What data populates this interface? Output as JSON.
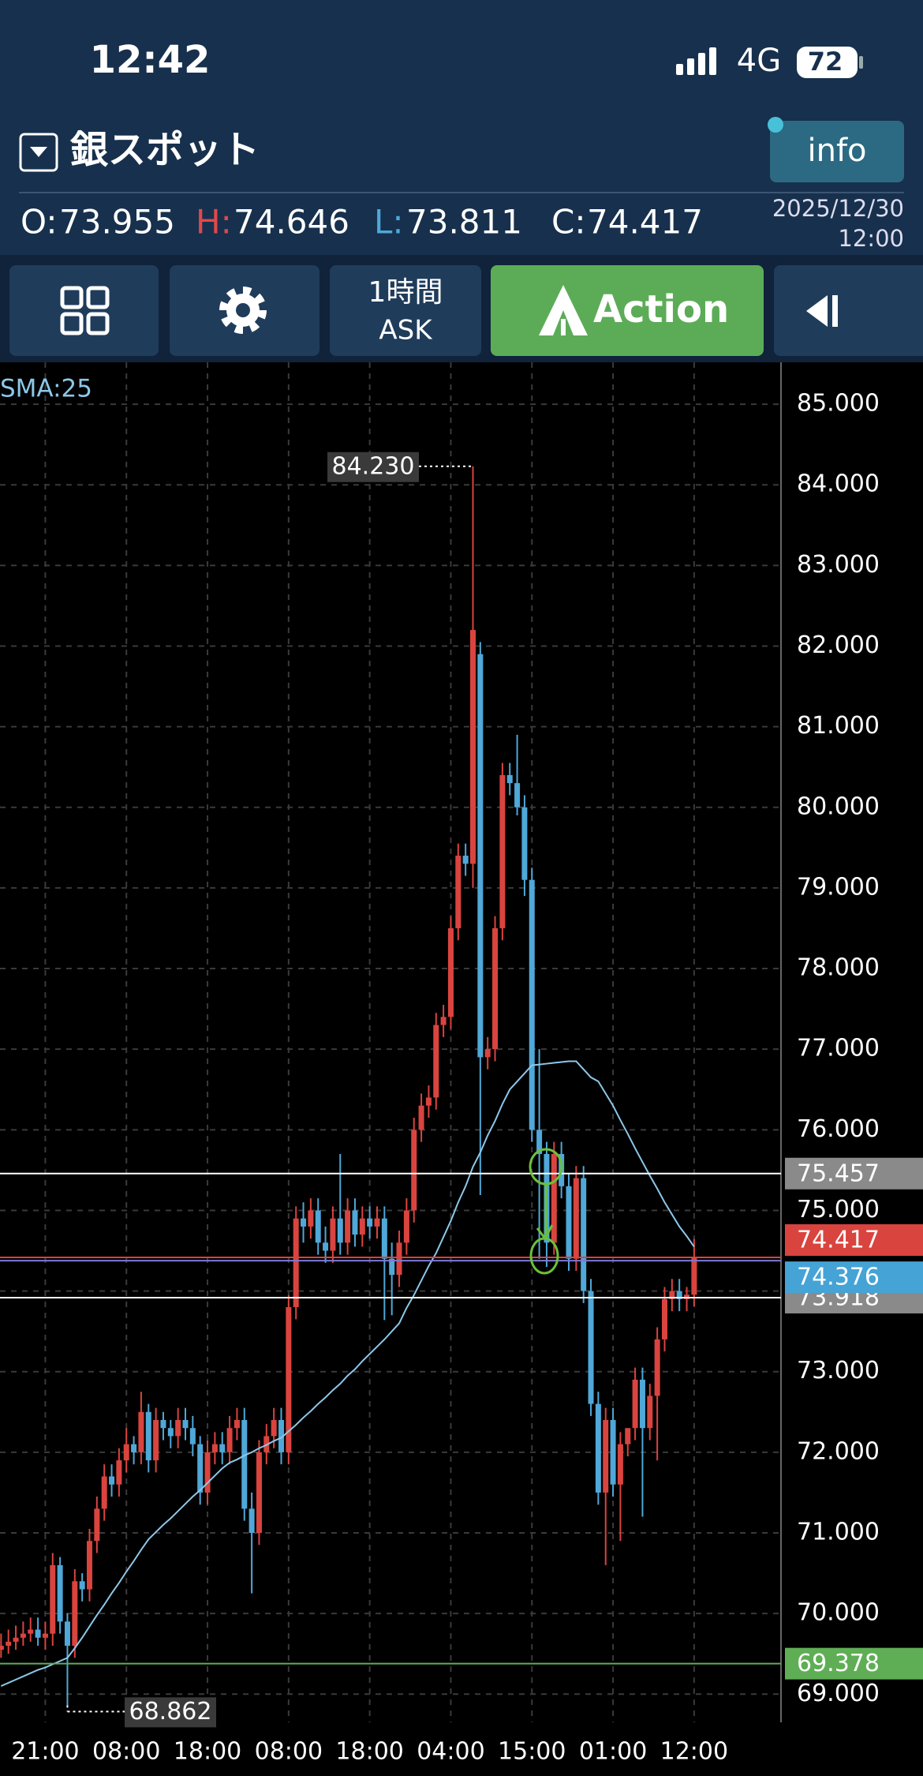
{
  "status_bar": {
    "time": "12:42",
    "network": "4G",
    "battery": "72"
  },
  "header": {
    "title": "銀スポット",
    "info_button": "info",
    "ohlc": [
      {
        "label": "O:",
        "value": 73.955
      },
      {
        "label": "H:",
        "value": 74.646
      },
      {
        "label": "L:",
        "value": 73.811
      },
      {
        "label": "C:",
        "value": 74.417
      }
    ],
    "date": "2025/12/30",
    "time": "12:00"
  },
  "toolbar": {
    "interval": "1時間",
    "price_type": "ASK",
    "action": "Action"
  },
  "chart_data": {
    "type": "candlestick",
    "categories": [
      null,
      null,
      null,
      null,
      null,
      null,
      "21:00",
      null,
      null,
      null,
      null,
      null,
      null,
      null,
      null,
      null,
      null,
      "08:00",
      null,
      null,
      null,
      null,
      null,
      null,
      null,
      null,
      null,
      null,
      "18:00",
      null,
      null,
      null,
      null,
      null,
      null,
      null,
      null,
      null,
      null,
      "08:00",
      null,
      null,
      null,
      null,
      null,
      null,
      null,
      null,
      null,
      null,
      "18:00",
      null,
      null,
      null,
      null,
      null,
      null,
      null,
      null,
      null,
      null,
      "04:00",
      null,
      null,
      null,
      null,
      null,
      null,
      null,
      null,
      null,
      null,
      "15:00",
      null,
      null,
      null,
      null,
      null,
      null,
      null,
      null,
      null,
      null,
      "01:00",
      null,
      null,
      null,
      null,
      null,
      null,
      null,
      null,
      null,
      null,
      "12:00"
    ],
    "open": [
      69.55,
      69.6,
      69.65,
      69.7,
      69.75,
      69.8,
      69.7,
      69.75,
      70.6,
      69.9,
      69.6,
      70.4,
      70.3,
      70.9,
      71.3,
      71.7,
      71.6,
      71.9,
      72.1,
      72.0,
      72.5,
      71.9,
      72.4,
      72.3,
      72.2,
      72.4,
      72.3,
      72.1,
      71.5,
      72.0,
      72.1,
      72.0,
      72.3,
      72.4,
      71.3,
      71.0,
      72.0,
      72.2,
      72.4,
      72.0,
      73.8,
      74.9,
      74.8,
      75.0,
      74.6,
      74.5,
      74.9,
      74.6,
      75.0,
      74.7,
      74.9,
      74.8,
      74.9,
      74.4,
      74.2,
      74.6,
      75.0,
      76.0,
      76.3,
      76.4,
      77.3,
      77.4,
      78.5,
      79.4,
      79.3,
      81.9,
      76.9,
      77.0,
      78.5,
      80.4,
      80.3,
      80.0,
      79.1,
      76.0,
      75.7,
      74.6,
      75.7,
      75.3,
      74.4,
      75.4,
      74.0,
      72.6,
      71.5,
      72.4,
      71.6,
      72.1,
      72.3,
      72.9,
      72.3,
      72.7,
      73.4,
      73.9,
      74.0,
      73.9,
      73.955
    ],
    "high": [
      69.75,
      69.8,
      69.85,
      69.9,
      69.95,
      69.95,
      69.9,
      70.75,
      70.7,
      70.0,
      70.55,
      70.5,
      71.05,
      71.45,
      71.85,
      71.85,
      72.05,
      72.3,
      72.2,
      72.75,
      72.6,
      72.55,
      72.5,
      72.4,
      72.55,
      72.55,
      72.45,
      72.2,
      72.15,
      72.25,
      72.25,
      72.45,
      72.55,
      72.55,
      71.5,
      72.15,
      72.35,
      72.55,
      72.55,
      73.95,
      75.05,
      75.1,
      75.15,
      75.15,
      74.8,
      75.05,
      75.7,
      75.15,
      75.15,
      75.05,
      75.05,
      75.05,
      75.05,
      74.6,
      74.75,
      75.15,
      76.15,
      76.45,
      76.55,
      77.45,
      77.55,
      78.65,
      79.55,
      79.55,
      84.23,
      82.05,
      77.15,
      78.65,
      80.55,
      80.55,
      80.9,
      80.15,
      79.25,
      77.0,
      75.85,
      75.85,
      75.85,
      75.45,
      75.55,
      75.55,
      74.15,
      72.75,
      72.55,
      72.55,
      72.25,
      72.25,
      73.05,
      73.05,
      72.85,
      73.55,
      74.05,
      74.15,
      74.15,
      74.05,
      74.646
    ],
    "low": [
      69.45,
      69.5,
      69.55,
      69.6,
      69.65,
      69.6,
      69.55,
      69.6,
      69.75,
      68.862,
      69.45,
      70.15,
      70.15,
      70.75,
      71.15,
      71.45,
      71.45,
      71.75,
      71.85,
      71.85,
      71.75,
      71.75,
      72.15,
      72.05,
      72.05,
      72.15,
      71.95,
      71.35,
      71.35,
      71.85,
      71.85,
      71.85,
      72.15,
      71.15,
      70.25,
      70.85,
      71.85,
      72.05,
      71.85,
      71.85,
      73.65,
      74.6,
      74.65,
      74.45,
      74.35,
      74.35,
      74.45,
      74.45,
      74.55,
      74.55,
      74.65,
      74.65,
      73.64,
      73.7,
      74.05,
      74.45,
      74.85,
      75.85,
      76.15,
      76.25,
      77.15,
      77.25,
      78.35,
      79.15,
      79.0,
      75.19,
      76.75,
      76.85,
      78.35,
      80.15,
      79.9,
      78.9,
      75.85,
      74.4,
      74.3,
      74.45,
      75.15,
      74.25,
      74.25,
      73.85,
      72.45,
      71.35,
      70.6,
      71.45,
      70.9,
      71.95,
      72.15,
      71.2,
      72.15,
      71.9,
      73.25,
      73.75,
      73.75,
      73.75,
      73.811
    ],
    "close": [
      69.6,
      69.65,
      69.7,
      69.75,
      69.8,
      69.7,
      69.75,
      70.6,
      69.9,
      69.6,
      70.4,
      70.3,
      70.9,
      71.3,
      71.7,
      71.6,
      71.9,
      72.1,
      72.0,
      72.5,
      71.9,
      72.4,
      72.3,
      72.2,
      72.4,
      72.3,
      72.1,
      71.5,
      72.0,
      72.1,
      72.0,
      72.3,
      72.4,
      71.3,
      71.0,
      72.0,
      72.2,
      72.4,
      72.0,
      73.8,
      74.9,
      74.8,
      75.0,
      74.6,
      74.5,
      74.9,
      74.6,
      75.0,
      74.7,
      74.9,
      74.8,
      74.9,
      74.4,
      74.2,
      74.6,
      75.0,
      76.0,
      76.3,
      76.4,
      77.3,
      77.4,
      78.5,
      79.4,
      79.3,
      82.2,
      76.9,
      77.0,
      78.5,
      80.4,
      80.3,
      80.0,
      79.1,
      76.0,
      75.7,
      74.6,
      75.7,
      75.3,
      74.4,
      75.4,
      74.0,
      72.6,
      71.5,
      72.4,
      71.6,
      72.1,
      72.3,
      72.9,
      72.3,
      72.7,
      73.4,
      73.9,
      74.0,
      73.9,
      73.955,
      74.417
    ],
    "up_color": "#d9443f",
    "down_color": "#4fa8d8",
    "sma": {
      "name": "SMA:25",
      "color": "#8cc8ea",
      "values": [
        69.1,
        69.14,
        69.18,
        69.22,
        69.26,
        69.3,
        69.33,
        69.37,
        69.41,
        69.45,
        69.57,
        69.7,
        69.84,
        69.98,
        70.11,
        70.25,
        70.38,
        70.52,
        70.65,
        70.79,
        70.92,
        71.01,
        71.1,
        71.18,
        71.27,
        71.36,
        71.45,
        71.53,
        71.62,
        71.71,
        71.8,
        71.87,
        71.91,
        71.96,
        72.0,
        72.05,
        72.09,
        72.14,
        72.18,
        72.26,
        72.34,
        72.43,
        72.51,
        72.6,
        72.68,
        72.77,
        72.85,
        72.95,
        73.03,
        73.13,
        73.22,
        73.31,
        73.4,
        73.5,
        73.6,
        73.79,
        73.95,
        74.13,
        74.31,
        74.47,
        74.67,
        74.87,
        75.1,
        75.3,
        75.54,
        75.72,
        75.93,
        76.11,
        76.32,
        76.5,
        76.6,
        76.7,
        76.8,
        76.81,
        76.82,
        76.83,
        76.84,
        76.85,
        76.85,
        76.75,
        76.65,
        76.6,
        76.45,
        76.3,
        76.12,
        75.95,
        75.77,
        75.6,
        75.43,
        75.27,
        75.1,
        74.95,
        74.8,
        74.68,
        74.55
      ]
    },
    "ylim": [
      68.65,
      85.52
    ],
    "yticks": [
      {
        "value": 69,
        "label": "69.000"
      },
      {
        "value": 70,
        "label": "70.000"
      },
      {
        "value": 71,
        "label": "71.000"
      },
      {
        "value": 72,
        "label": "72.000"
      },
      {
        "value": 73,
        "label": "73.000"
      },
      {
        "value": 74,
        "label": "74.000"
      },
      {
        "value": 75,
        "label": "75.000"
      },
      {
        "value": 76,
        "label": "76.000"
      },
      {
        "value": 77,
        "label": "77.000"
      },
      {
        "value": 78,
        "label": "78.000"
      },
      {
        "value": 79,
        "label": "79.000"
      },
      {
        "value": 80,
        "label": "80.000"
      },
      {
        "value": 81,
        "label": "81.000"
      },
      {
        "value": 82,
        "label": "82.000"
      },
      {
        "value": 83,
        "label": "83.000"
      },
      {
        "value": 84,
        "label": "84.000"
      },
      {
        "value": 85,
        "label": "85.000"
      }
    ],
    "grid": true,
    "price_lines": [
      {
        "value": 75.457,
        "color": "#8a8a8a",
        "line_color": "#ffffff"
      },
      {
        "value": 74.417,
        "color": "#d9443f",
        "line_color": "#d9443f"
      },
      {
        "value": 74.376,
        "color": "#45a3d6",
        "line_color": "#7a7ad8"
      },
      {
        "value": 73.918,
        "color": "#8a8a8a",
        "line_color": "#ffffff"
      },
      {
        "value": 69.378,
        "color": "#5fae55",
        "line_color": "#5fae55"
      }
    ],
    "high_marker": {
      "value": 84.23,
      "label": "84.230"
    },
    "low_marker": {
      "value": 68.862
    }
  }
}
